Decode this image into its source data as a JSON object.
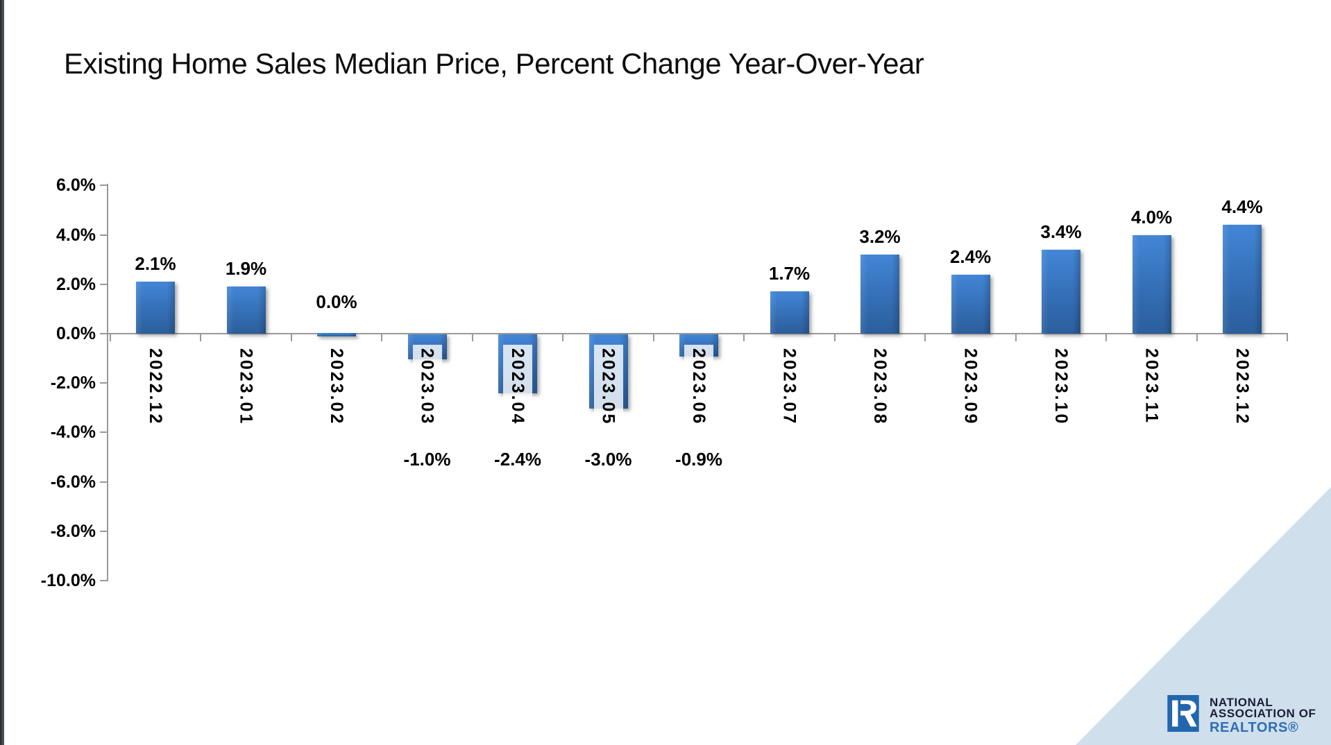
{
  "chart_data": {
    "type": "bar",
    "title": "Existing Home Sales Median Price, Percent Change Year-Over-Year",
    "categories": [
      "2022.12",
      "2023.01",
      "2023.02",
      "2023.03",
      "2023.04",
      "2023.05",
      "2023.06",
      "2023.07",
      "2023.08",
      "2023.09",
      "2023.10",
      "2023.11",
      "2023.12"
    ],
    "values": [
      2.1,
      1.9,
      0.0,
      -1.0,
      -2.4,
      -3.0,
      -0.9,
      1.7,
      3.2,
      2.4,
      3.4,
      4.0,
      4.4
    ],
    "value_labels": [
      "2.1%",
      "1.9%",
      "0.0%",
      "-1.0%",
      "-2.4%",
      "-3.0%",
      "-0.9%",
      "1.7%",
      "3.2%",
      "2.4%",
      "3.4%",
      "4.0%",
      "4.4%"
    ],
    "xlabel": "",
    "ylabel": "",
    "ylim": [
      -10,
      6
    ],
    "ytick_values": [
      6,
      4,
      2,
      0,
      -2,
      -4,
      -6,
      -8,
      -10
    ],
    "ytick_labels": [
      "6.0%",
      "4.0%",
      "2.0%",
      "0.0%",
      "-2.0%",
      "-4.0%",
      "-6.0%",
      "-8.0%",
      "-10.0%"
    ],
    "grid": false,
    "legend": "none"
  },
  "branding": {
    "logo_icon": "realtor-block-R",
    "lines": [
      "NATIONAL",
      "ASSOCIATION OF",
      "REALTORS®"
    ]
  },
  "colors": {
    "bar_top": "#4286d6",
    "bar_bottom": "#2b5e9b",
    "axis": "#999999",
    "label_box": "rgba(255,255,255,0.8)",
    "corner_triangle": "#cfe0ec",
    "logo_blue": "#2266ae",
    "logo_text": "#1c1c38",
    "realtors_text": "#2e6db5"
  }
}
